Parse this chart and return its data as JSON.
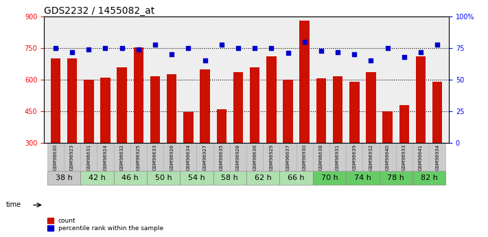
{
  "title": "GDS2232 / 1455082_at",
  "samples": [
    "GSM96630",
    "GSM96923",
    "GSM96631",
    "GSM96924",
    "GSM96632",
    "GSM96925",
    "GSM96633",
    "GSM96926",
    "GSM96634",
    "GSM96927",
    "GSM96635",
    "GSM96928",
    "GSM96636",
    "GSM96929",
    "GSM96637",
    "GSM96930",
    "GSM96638",
    "GSM96931",
    "GSM96639",
    "GSM96932",
    "GSM96640",
    "GSM96933",
    "GSM96641",
    "GSM96934"
  ],
  "time_groups": [
    {
      "label": "38 h",
      "indices": [
        0,
        1
      ],
      "color": "#c8c8c8"
    },
    {
      "label": "42 h",
      "indices": [
        2,
        3
      ],
      "color": "#b0e0b0"
    },
    {
      "label": "46 h",
      "indices": [
        4,
        5
      ],
      "color": "#b0e0b0"
    },
    {
      "label": "50 h",
      "indices": [
        6,
        7
      ],
      "color": "#b0e0b0"
    },
    {
      "label": "54 h",
      "indices": [
        8,
        9
      ],
      "color": "#b0e0b0"
    },
    {
      "label": "58 h",
      "indices": [
        10,
        11
      ],
      "color": "#b0e0b0"
    },
    {
      "label": "62 h",
      "indices": [
        12,
        13
      ],
      "color": "#b0e0b0"
    },
    {
      "label": "66 h",
      "indices": [
        14,
        15
      ],
      "color": "#b0e0b0"
    },
    {
      "label": "70 h",
      "indices": [
        16,
        17
      ],
      "color": "#66cc66"
    },
    {
      "label": "74 h",
      "indices": [
        18,
        19
      ],
      "color": "#66cc66"
    },
    {
      "label": "78 h",
      "indices": [
        20,
        21
      ],
      "color": "#66cc66"
    },
    {
      "label": "82 h",
      "indices": [
        22,
        23
      ],
      "color": "#66cc66"
    }
  ],
  "bar_values": [
    700,
    700,
    600,
    610,
    660,
    755,
    615,
    625,
    445,
    650,
    460,
    635,
    660,
    710,
    600,
    880,
    605,
    615,
    590,
    635,
    450,
    480,
    710,
    590
  ],
  "percentile_values": [
    75,
    72,
    74,
    75,
    75,
    74,
    78,
    70,
    75,
    65,
    78,
    75,
    75,
    75,
    71,
    80,
    73,
    72,
    70,
    65,
    75,
    68,
    72,
    78
  ],
  "ylim_left": [
    300,
    900
  ],
  "ylim_right": [
    0,
    100
  ],
  "yticks_left": [
    300,
    450,
    600,
    750,
    900
  ],
  "yticks_right": [
    0,
    25,
    50,
    75,
    100
  ],
  "bar_color": "#cc1100",
  "dot_color": "#0000cc",
  "bar_width": 0.6,
  "bg_color": "#ffffff",
  "plot_bg": "#eeeeee",
  "grid_color": "#000000",
  "title_fontsize": 10,
  "tick_fontsize": 7,
  "sample_fontsize": 5.0,
  "time_fontsize": 8
}
